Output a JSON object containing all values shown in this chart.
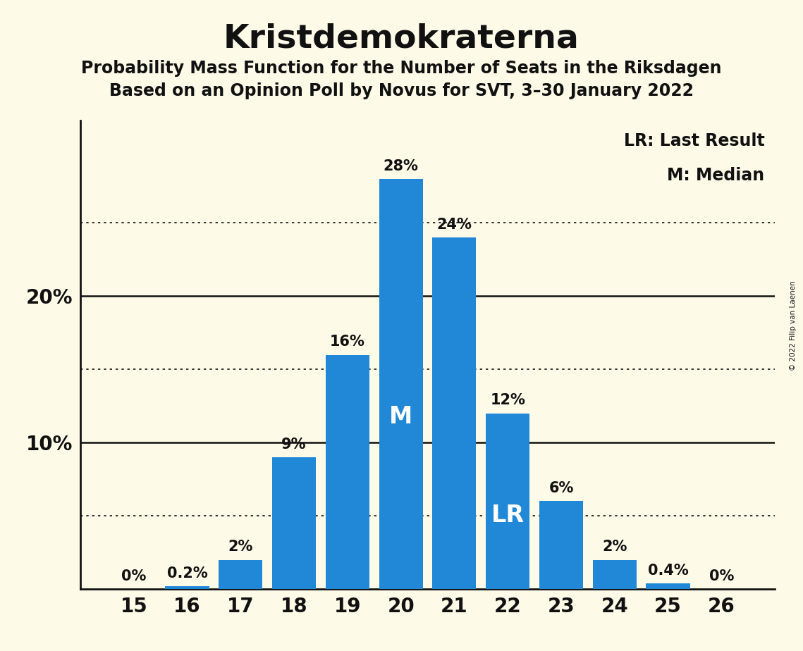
{
  "title": "Kristdemokraterna",
  "subtitle1": "Probability Mass Function for the Number of Seats in the Riksdagen",
  "subtitle2": "Based on an Opinion Poll by Novus for SVT, 3–30 January 2022",
  "copyright": "© 2022 Filip van Laenen",
  "seats": [
    15,
    16,
    17,
    18,
    19,
    20,
    21,
    22,
    23,
    24,
    25,
    26
  ],
  "probabilities": [
    0.0,
    0.2,
    2.0,
    9.0,
    16.0,
    28.0,
    24.0,
    12.0,
    6.0,
    2.0,
    0.4,
    0.0
  ],
  "bar_color": "#2188d8",
  "median_seat": 20,
  "last_result_seat": 22,
  "background_color": "#fdfae8",
  "title_color": "#111111",
  "bar_label_color_dark": "#111111",
  "bar_label_color_white": "#ffffff",
  "yticks_solid": [
    10,
    20
  ],
  "yticks_dotted": [
    5,
    15,
    25
  ],
  "ylim": [
    0,
    32
  ],
  "legend_line1": "LR: Last Result",
  "legend_line2": "M: Median",
  "axis_color": "#111111",
  "bar_width": 0.82
}
